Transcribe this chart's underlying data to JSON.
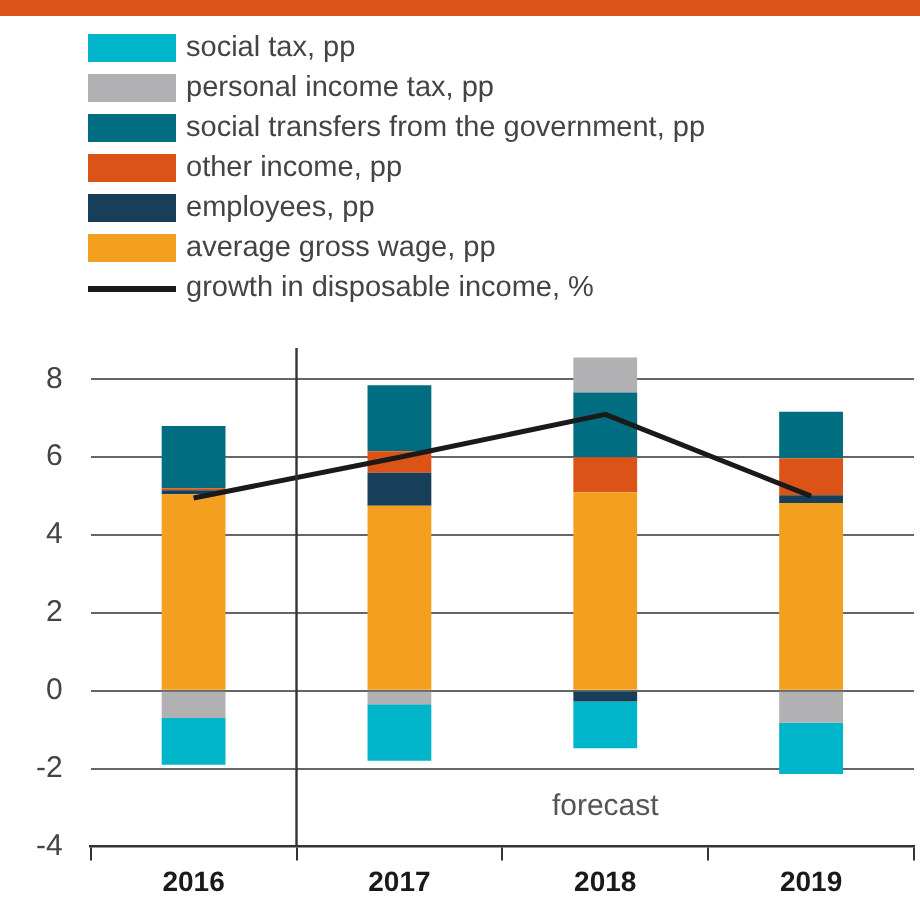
{
  "chart_data": {
    "type": "bar",
    "stacked": true,
    "x": [
      2016,
      2017,
      2018,
      2019
    ],
    "xlim": [
      2015.5,
      2019.5
    ],
    "xticks": [
      {
        "value": 2015.5,
        "label": null
      },
      2016,
      {
        "value": 2016.5,
        "label": null
      },
      2017,
      {
        "value": 2017.5,
        "label": null
      },
      2018,
      {
        "value": 2018.5,
        "label": null
      },
      2019,
      {
        "value": 2019.5,
        "label": null
      }
    ],
    "ylim": [
      -4,
      8.6
    ],
    "yticks": [
      -4,
      -2,
      0,
      2,
      4,
      6,
      8
    ],
    "grid": "y",
    "legend": "top left",
    "series": [
      {
        "name": "average gross wage, pp",
        "color": "#f3a020",
        "values": [
          5.05,
          4.75,
          5.1,
          4.82
        ]
      },
      {
        "name": "employees, pp",
        "color": "#173f5a",
        "values": [
          0.1,
          0.85,
          -0.28,
          0.2
        ]
      },
      {
        "name": "other income, pp",
        "color": "#dc5318",
        "values": [
          0.05,
          0.55,
          0.9,
          0.95
        ]
      },
      {
        "name": "social transfers from the government, pp",
        "color": "#006d80",
        "values": [
          1.6,
          1.7,
          1.66,
          1.2
        ]
      },
      {
        "name": "personal income tax, pp",
        "color": "#b1b1b3",
        "values": [
          -0.7,
          -0.35,
          0.9,
          -0.82
        ]
      },
      {
        "name": "social tax, pp",
        "color": "#00b5c9",
        "values": [
          -1.2,
          -1.45,
          -1.2,
          -1.32
        ]
      },
      {
        "name": "growth in disposable income, %",
        "type": "line",
        "color": "#1a1a1a",
        "values": [
          4.95,
          6.0,
          7.1,
          5.0
        ],
        "marker": "none"
      }
    ],
    "ref_lines": [
      {
        "axis": "x",
        "value": 2016.5,
        "color": "#333333"
      }
    ],
    "annotations": [
      "forecast"
    ]
  }
}
